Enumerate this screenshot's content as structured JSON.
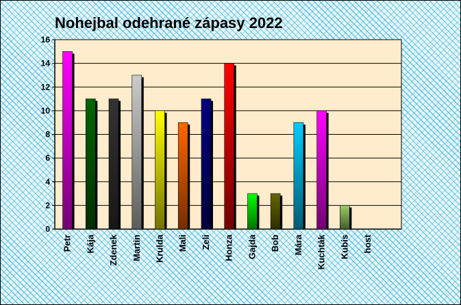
{
  "chart_data": {
    "type": "bar",
    "title": "Nohejbal odehrané zápasy 2022",
    "xlabel": "",
    "ylabel": "",
    "ylim": [
      0,
      16
    ],
    "yticks": [
      0,
      2,
      4,
      6,
      8,
      10,
      12,
      14,
      16
    ],
    "grid": true,
    "legend": "none",
    "plot_background": "#ffeccc",
    "categories": [
      "Petr",
      "Kája",
      "Zdenek",
      "Martin",
      "Krulda",
      "Mali",
      "Zeli",
      "Honza",
      "Gajda",
      "Bob",
      "Mára",
      "Kuchták",
      "Kubis",
      "host"
    ],
    "values": [
      15,
      11,
      11,
      13,
      10,
      9,
      11,
      14,
      3,
      3,
      9,
      10,
      2,
      0
    ],
    "colors": [
      "#ff00ff",
      "#006600",
      "#333333",
      "#cccccc",
      "#ffff00",
      "#ff6600",
      "#000080",
      "#ff0000",
      "#00ff00",
      "#666600",
      "#00ccff",
      "#ff00ff",
      "#99cc66",
      "#999999"
    ]
  }
}
